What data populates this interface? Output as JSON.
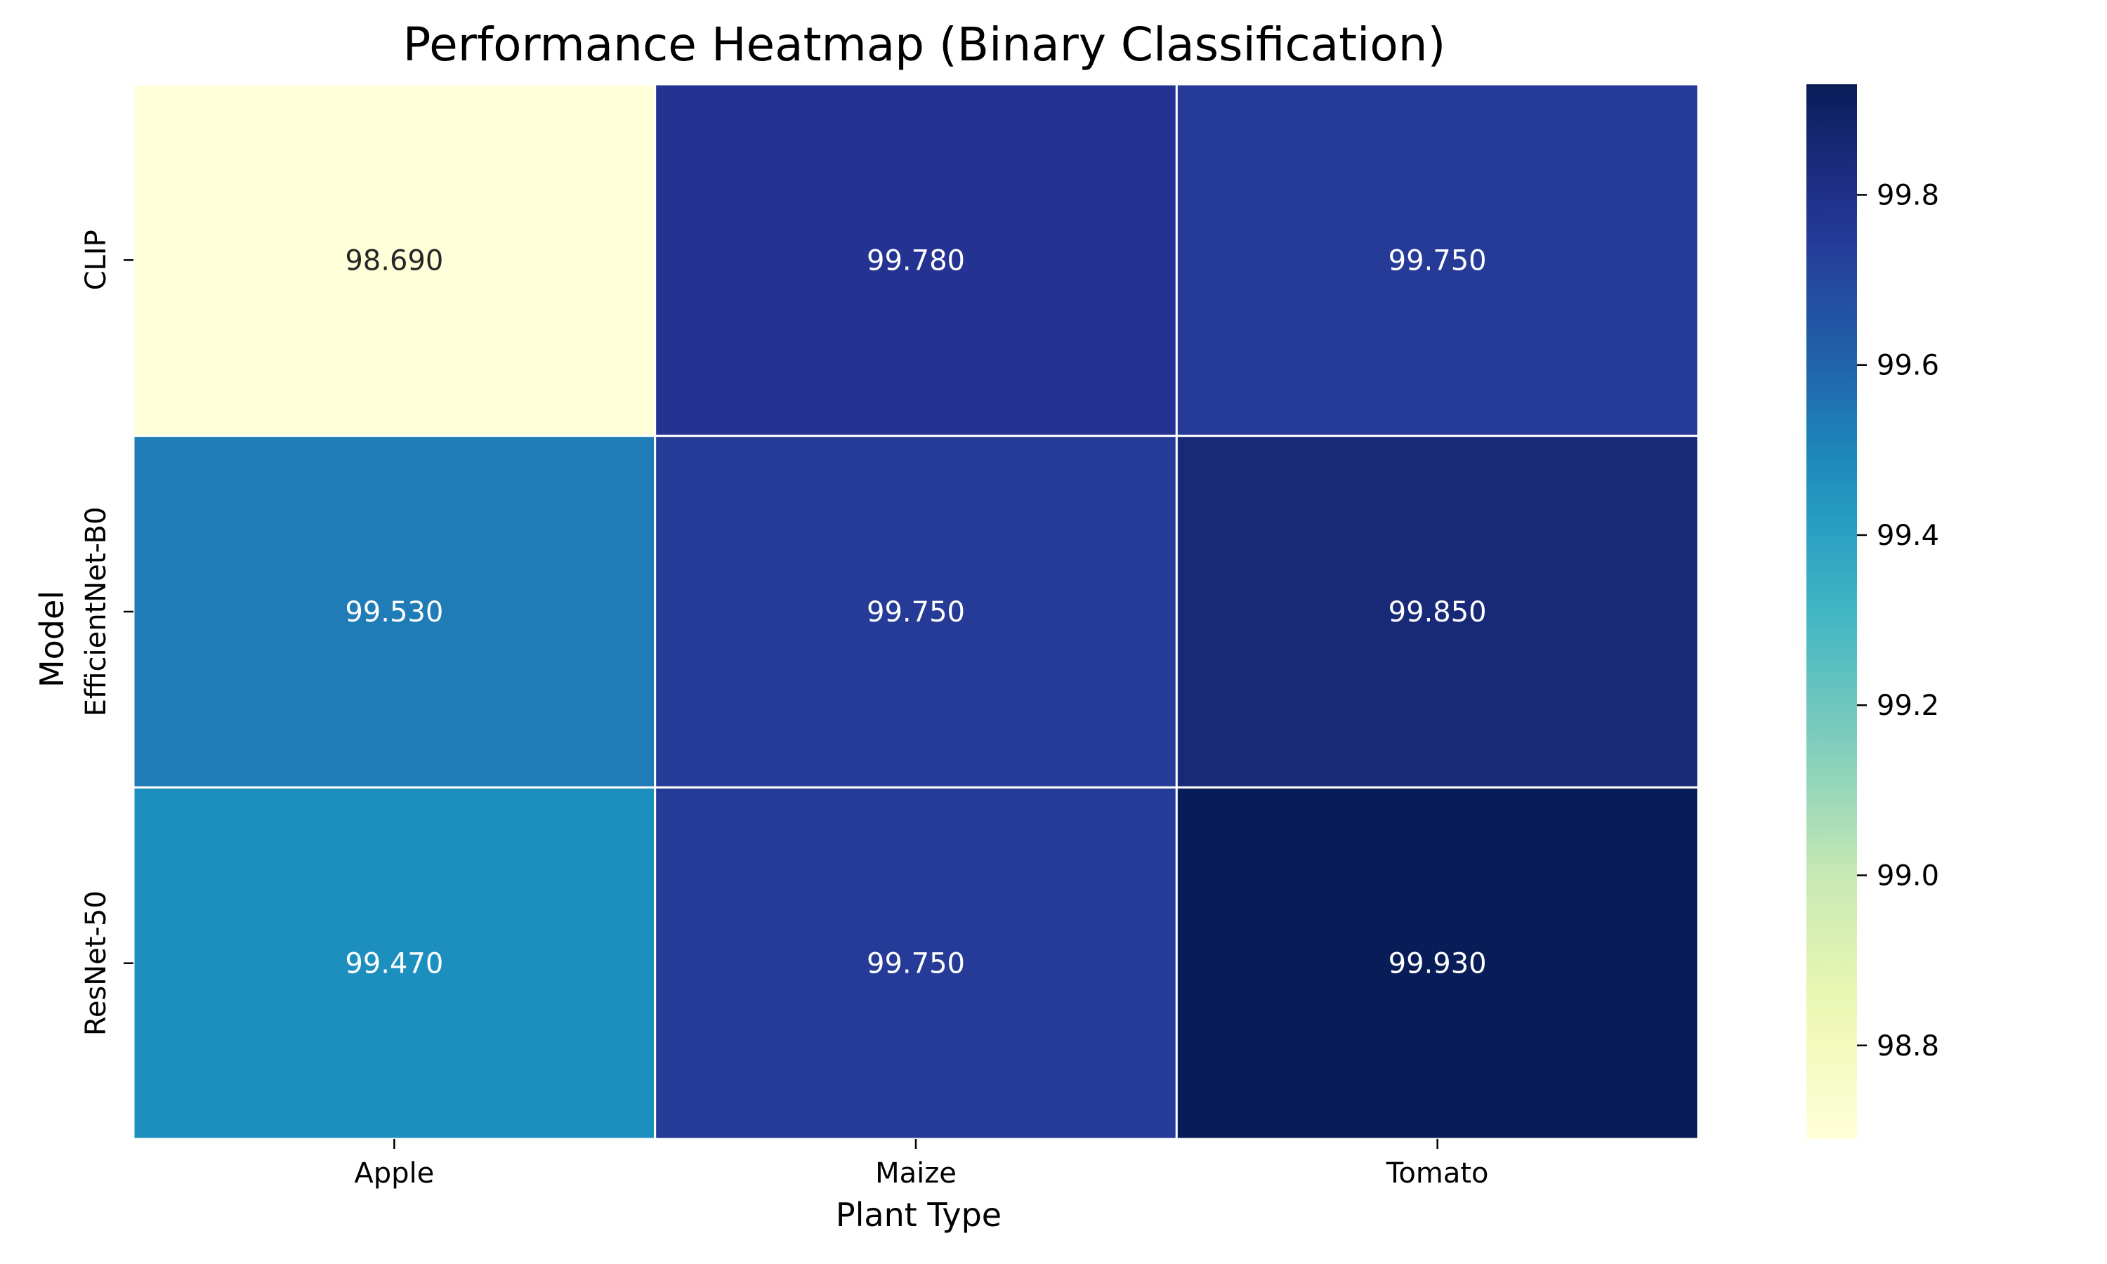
{
  "chart_data": {
    "type": "heatmap",
    "title": "Performance Heatmap (Binary Classification)",
    "xlabel": "Plant Type",
    "ylabel": "Model",
    "x_categories": [
      "Apple",
      "Maize",
      "Tomato"
    ],
    "y_categories": [
      "CLIP",
      "EfficientNet-B0",
      "ResNet-50"
    ],
    "values": [
      [
        98.69,
        99.78,
        99.75
      ],
      [
        99.53,
        99.75,
        99.85
      ],
      [
        99.47,
        99.75,
        99.93
      ]
    ],
    "value_format": "3 decimals",
    "colormap": "YlGnBu",
    "colorbar": {
      "range": [
        98.69,
        99.93
      ],
      "ticks": [
        98.8,
        99.0,
        99.2,
        99.4,
        99.6,
        99.8
      ]
    },
    "cell_border_color": "#ffffff",
    "grid": false
  }
}
